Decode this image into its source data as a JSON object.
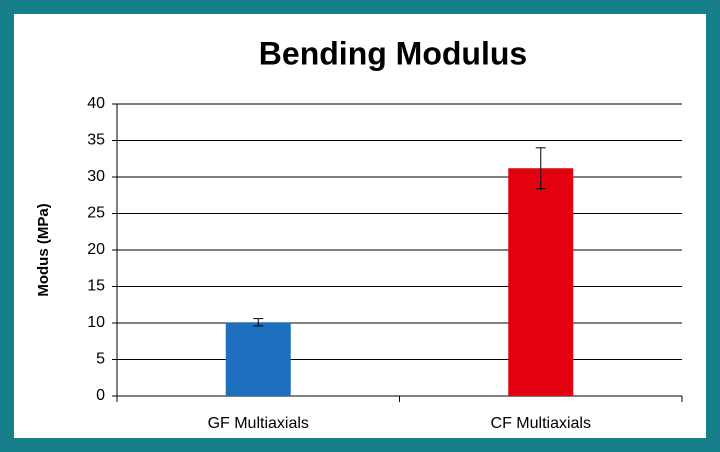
{
  "chart_data": {
    "type": "bar",
    "title": "Bending Modulus",
    "y_label": "Modus (MPa)",
    "categories": [
      "GF Multiaxials",
      "CF Multiaxials"
    ],
    "values": [
      10.1,
      31.2
    ],
    "errors": [
      0.5,
      2.8
    ],
    "colors": [
      "#1e6fbd",
      "#e3000f"
    ],
    "ylim": [
      0,
      40
    ],
    "yticks": [
      0,
      5,
      10,
      15,
      20,
      25,
      30,
      35,
      40
    ],
    "grid": true
  }
}
